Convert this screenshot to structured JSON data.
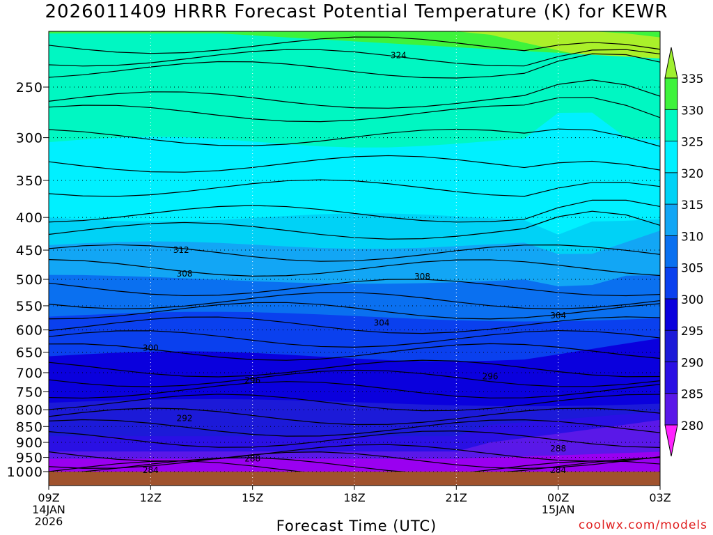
{
  "title": "2026011409 HRRR Forecast Potential Temperature (K) for KEWR",
  "credit": "coolwx.com/models",
  "chart_data": {
    "type": "contour",
    "title": "2026011409 HRRR Forecast Potential Temperature (K) for KEWR",
    "xlabel": "Forecast Time (UTC)",
    "ylabel": "",
    "x_hours": [
      0,
      3,
      6,
      9,
      12,
      15,
      18
    ],
    "x_ticks": [
      {
        "label": "09Z",
        "sub": [
          "14JAN",
          "2026"
        ]
      },
      {
        "label": "12Z",
        "sub": []
      },
      {
        "label": "15Z",
        "sub": []
      },
      {
        "label": "18Z",
        "sub": []
      },
      {
        "label": "21Z",
        "sub": []
      },
      {
        "label": "00Z",
        "sub": [
          "15JAN"
        ]
      },
      {
        "label": "03Z",
        "sub": []
      }
    ],
    "xlim_hours": [
      0,
      18
    ],
    "y_ticks": [
      250,
      300,
      350,
      400,
      450,
      500,
      550,
      600,
      650,
      700,
      750,
      800,
      850,
      900,
      950,
      1000
    ],
    "ylim": [
      1000,
      200
    ],
    "y_scale": "log",
    "colorbar": {
      "levels": [
        280,
        285,
        290,
        295,
        300,
        305,
        310,
        315,
        320,
        325,
        330,
        335
      ],
      "colors": [
        "#9a00f0",
        "#5a18e8",
        "#2a10e4",
        "#1c1ad8",
        "#0a00dd",
        "#0a40ee",
        "#0a70f0",
        "#12a6f5",
        "#00d2f6",
        "#00f0ff",
        "#00f7c2",
        "#3ef33c",
        "#aaf02a"
      ],
      "under_color": "#ff22ff",
      "over_color": "#9ff030"
    },
    "contour_labels": [
      {
        "value": "324",
        "hour": 10.3,
        "p": 223
      },
      {
        "value": "312",
        "hour": 3.9,
        "p": 450
      },
      {
        "value": "308",
        "hour": 4.0,
        "p": 490
      },
      {
        "value": "308",
        "hour": 11.0,
        "p": 495
      },
      {
        "value": "304",
        "hour": 9.8,
        "p": 585
      },
      {
        "value": "304",
        "hour": 15.0,
        "p": 570
      },
      {
        "value": "300",
        "hour": 3.0,
        "p": 640
      },
      {
        "value": "296",
        "hour": 6.0,
        "p": 720
      },
      {
        "value": "296",
        "hour": 13.0,
        "p": 710
      },
      {
        "value": "292",
        "hour": 4.0,
        "p": 825
      },
      {
        "value": "288",
        "hour": 6.0,
        "p": 955
      },
      {
        "value": "288",
        "hour": 15.0,
        "p": 920
      },
      {
        "value": "284",
        "hour": 3.0,
        "p": 995
      },
      {
        "value": "284",
        "hour": 15.0,
        "p": 995
      }
    ],
    "ground_color": "#a0522d",
    "grid": "dotted"
  }
}
